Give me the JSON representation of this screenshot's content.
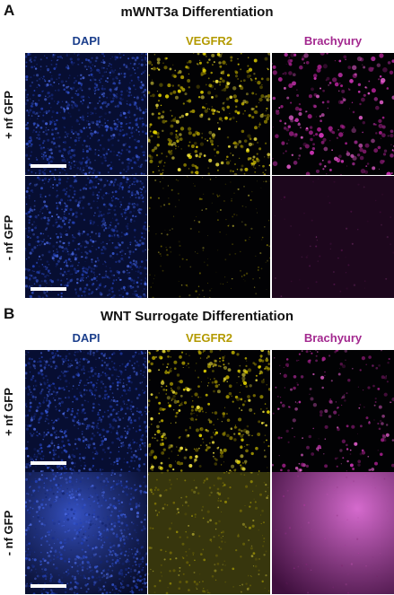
{
  "figure": {
    "panels": [
      {
        "letter": "A",
        "title": "mWNT3a Differentiation",
        "columns": [
          "DAPI",
          "VEGFR2",
          "Brachyury"
        ],
        "rows": [
          "+ nf GFP",
          "- nf GFP"
        ]
      },
      {
        "letter": "B",
        "title": "WNT Surrogate Differentiation",
        "columns": [
          "DAPI",
          "VEGFR2",
          "Brachyury"
        ],
        "rows": [
          "+ nf GFP",
          "- nf GFP"
        ]
      }
    ],
    "channel_colors": {
      "DAPI": "#1f3fa8",
      "VEGFR2": "#c8b400",
      "Brachyury": "#b0289c"
    },
    "heading_colors": {
      "DAPI": "#1c3f8c",
      "VEGFR2": "#b39a00",
      "Brachyury": "#a3288f"
    }
  }
}
